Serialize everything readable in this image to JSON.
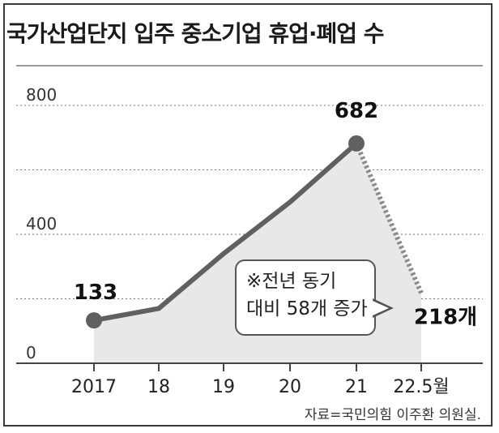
{
  "title": "국가산업단지 입주 중소기업 휴업·폐업 수",
  "chart_data": {
    "type": "line",
    "categories": [
      "2017",
      "18",
      "19",
      "20",
      "21",
      "22.5월"
    ],
    "values": [
      133,
      170,
      340,
      500,
      682,
      218
    ],
    "projected_from_index": 4,
    "ylim": [
      0,
      800
    ],
    "yticks": [
      "0",
      "400",
      "800"
    ],
    "grid": true,
    "data_labels": [
      {
        "index": 0,
        "text": "133"
      },
      {
        "index": 4,
        "text": "682"
      },
      {
        "index": 5,
        "text": "218개"
      }
    ],
    "annotation": {
      "line1": "※전년 동기",
      "line2": "대비 58개 증가"
    }
  },
  "source": "자료=국민의힘 이주환 의원실.",
  "colors": {
    "line": "#606060",
    "area": "#e8e8e8",
    "dotted": "#8a8a8a",
    "grid": "#777777"
  }
}
